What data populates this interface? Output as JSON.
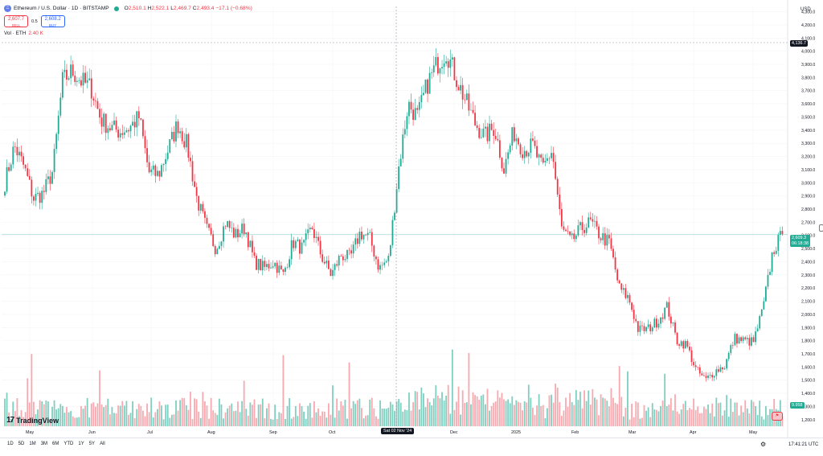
{
  "header": {
    "symbol_icon": "ethereum-icon",
    "title": "Ethereum / U.S. Dollar · 1D · BITSTAMP",
    "ohlc": {
      "o_label": "O",
      "o": "2,510.1",
      "h_label": "H",
      "h": "2,522.1",
      "l_label": "L",
      "l": "2,469.7",
      "c_label": "C",
      "c": "2,493.4",
      "change": "−17.1 (−0.68%)"
    },
    "sell": {
      "price": "2,607.7",
      "label": "SELL"
    },
    "buy": {
      "price": "2,608.2",
      "label": "BUY"
    },
    "spread": "0.5",
    "volume": {
      "label": "Vol · ETH",
      "value": "2.40 K"
    }
  },
  "currency_label": "USD",
  "price_tags": {
    "crosshair": "4,136.7",
    "last_price": "2,609.3",
    "countdown": "06:18:38",
    "volume_last": "9.958"
  },
  "crosshair_date": "Sat 02 Nov '24",
  "bottom_bar": {
    "ranges": [
      "1D",
      "5D",
      "1M",
      "3M",
      "6M",
      "YTD",
      "1Y",
      "5Y",
      "All"
    ],
    "settings_icon": "gear-icon",
    "clock": "17:41:21 UTC"
  },
  "logo_text": "TradingView",
  "colors": {
    "up": "#22ab94",
    "down": "#f23645",
    "up_vol": "#7fcfc0",
    "down_vol": "#f7a9b0"
  },
  "chart_data": {
    "type": "candlestick",
    "title": "Ethereum / U.S. Dollar · 1D · BITSTAMP",
    "xlabel": "",
    "ylabel": "USD",
    "ylim": [
      1150,
      4340
    ],
    "y_ticks": [
      1200,
      1300,
      1400,
      1500,
      1600,
      1700,
      1800,
      1900,
      2000,
      2100,
      2200,
      2300,
      2400,
      2500,
      2600,
      2700,
      2800,
      2900,
      3000,
      3100,
      3200,
      3300,
      3400,
      3500,
      3600,
      3700,
      3800,
      3900,
      4000,
      4100,
      4200,
      4300
    ],
    "x_ticks": [
      "May",
      "Jun",
      "Jul",
      "Aug",
      "Sep",
      "Oct",
      "Nov",
      "Dec",
      "2025",
      "Feb",
      "Mar",
      "Apr",
      "May"
    ],
    "anchors": [
      3000,
      3280,
      3120,
      2880,
      2920,
      3090,
      3770,
      3850,
      3770,
      3720,
      3480,
      3420,
      3390,
      3420,
      3500,
      3080,
      3060,
      3250,
      3450,
      3280,
      2880,
      2650,
      2500,
      2700,
      2600,
      2660,
      2400,
      2350,
      2400,
      2300,
      2550,
      2500,
      2660,
      2440,
      2300,
      2450,
      2430,
      2620,
      2580,
      2350,
      2420,
      3100,
      3600,
      3500,
      3750,
      3900,
      4000,
      3800,
      3620,
      3450,
      3350,
      3420,
      3100,
      3390,
      3250,
      3280,
      3100,
      3250,
      2650,
      2550,
      2650,
      2700,
      2600,
      2540,
      2200,
      2120,
      1880,
      1890,
      1950,
      2060,
      1800,
      1770,
      1580,
      1500,
      1570,
      1610,
      1820,
      1800,
      1790,
      2050,
      2480,
      2609
    ],
    "volume": {
      "label": "Vol · ETH",
      "last": "2.40 K"
    },
    "last_price": 2609.3
  }
}
